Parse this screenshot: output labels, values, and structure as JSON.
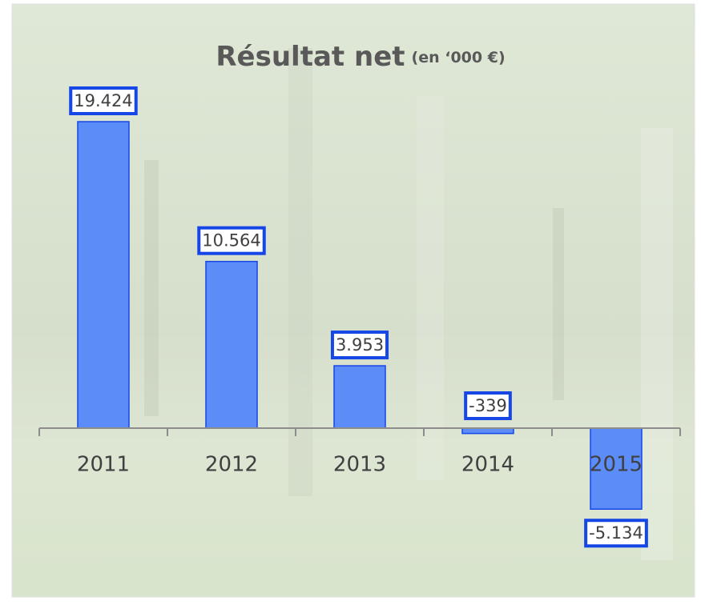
{
  "chart_data": {
    "type": "bar",
    "title": "Résultat net",
    "subtitle": "(en ‘000 €)",
    "categories": [
      "2011",
      "2012",
      "2013",
      "2014",
      "2015"
    ],
    "values": [
      19424,
      10564,
      3953,
      -339,
      -5134
    ],
    "value_labels": [
      "19.424",
      "10.564",
      "3.953",
      "-339",
      "-5.134"
    ],
    "color": "#5b8cf7",
    "label_border_color": "#1646e6"
  }
}
